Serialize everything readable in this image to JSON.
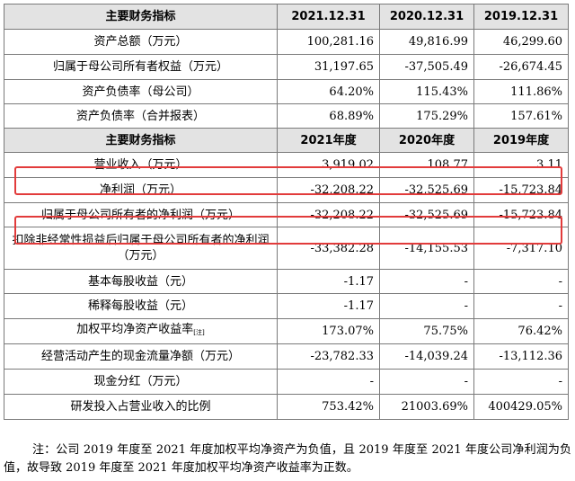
{
  "table": {
    "header1": [
      "主要财务指标",
      "2021.12.31",
      "2020.12.31",
      "2019.12.31"
    ],
    "group1": [
      {
        "label": "资产总额（万元）",
        "values": [
          "100,281.16",
          "49,816.99",
          "46,299.60"
        ]
      },
      {
        "label": "归属于母公司所有者权益（万元）",
        "values": [
          "31,197.65",
          "-37,505.49",
          "-26,674.45"
        ]
      },
      {
        "label": "资产负债率（母公司）",
        "values": [
          "64.20%",
          "115.43%",
          "111.86%"
        ]
      },
      {
        "label": "资产负债率（合并报表）",
        "values": [
          "68.89%",
          "175.29%",
          "157.61%"
        ]
      }
    ],
    "header2": [
      "主要财务指标",
      "2021年度",
      "2020年度",
      "2019年度"
    ],
    "group2": [
      {
        "label": "营业收入（万元）",
        "values": [
          "3,919.02",
          "108.77",
          "3.11"
        ]
      },
      {
        "label": "净利润（万元）",
        "values": [
          "-32,208.22",
          "-32,525.69",
          "-15,723.84"
        ]
      },
      {
        "label": "归属于母公司所有者的净利润（万元）",
        "values": [
          "-32,208.22",
          "-32,525.69",
          "-15,723.84"
        ]
      },
      {
        "label": "扣除非经常性损益后归属于母公司所有者的净利润（万元）",
        "values": [
          "-33,382.28",
          "-14,155.53",
          "-7,317.10"
        ]
      },
      {
        "label": "基本每股收益（元）",
        "values": [
          "-1.17",
          "-",
          "-"
        ]
      },
      {
        "label": "稀释每股收益（元）",
        "values": [
          "-1.17",
          "-",
          "-"
        ]
      },
      {
        "label": "加权平均净资产收益率",
        "sup": "[注]",
        "values": [
          "173.07%",
          "75.75%",
          "76.42%"
        ]
      },
      {
        "label": "经营活动产生的现金流量净额（万元）",
        "values": [
          "-23,782.33",
          "-14,039.24",
          "-13,112.36"
        ]
      },
      {
        "label": "现金分红（万元）",
        "values": [
          "-",
          "-",
          "-"
        ]
      },
      {
        "label": "研发投入占营业收入的比例",
        "values": [
          "753.42%",
          "21003.69%",
          "400429.05%"
        ]
      }
    ]
  },
  "note": "注：公司 2019 年度至 2021 年度加权平均净资产为负值，且 2019 年度至 2021 年度公司净利润为负值，故导致 2019 年度至 2021 年度加权平均净资产收益率为正数。",
  "colors": {
    "highlight": "#e23b3b",
    "header_bg": "#e3e3e3",
    "border": "#7a7a7a"
  }
}
